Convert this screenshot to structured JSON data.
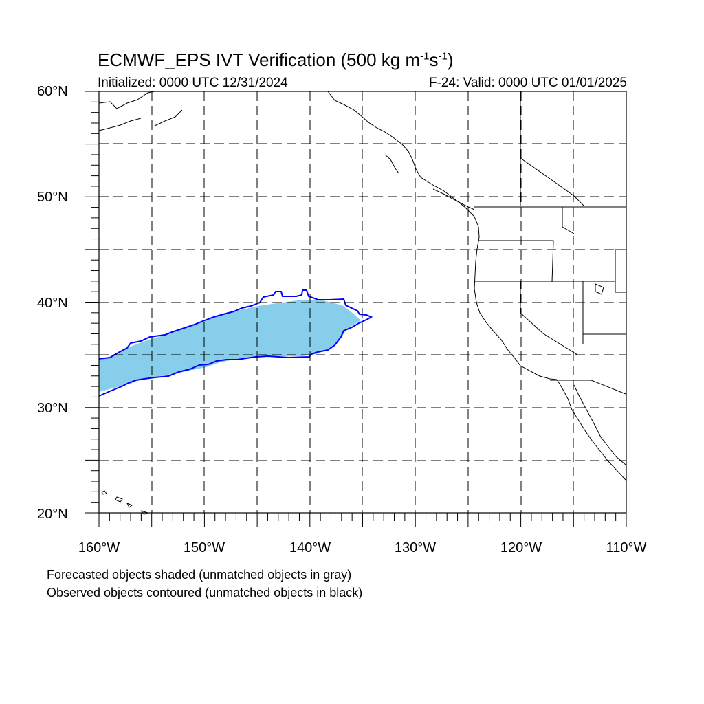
{
  "title": {
    "prefix": "ECMWF_EPS IVT Verification (500 kg m",
    "sup1": "-1",
    "mid": "s",
    "sup2": "-1",
    "suffix": ")"
  },
  "subtitle_left": "Initialized: 0000 UTC 12/31/2024",
  "subtitle_right": "F-24: Valid: 0000 UTC 01/01/2025",
  "lat_labels": [
    "60°N",
    "50°N",
    "40°N",
    "30°N",
    "20°N"
  ],
  "lon_labels": [
    "160°W",
    "150°W",
    "140°W",
    "130°W",
    "120°W",
    "110°W"
  ],
  "notes": [
    "Forecasted objects shaded (unmatched objects in gray)",
    "Observed objects contoured (unmatched objects in black)"
  ],
  "map": {
    "lon_range": [
      -160,
      -110
    ],
    "lat_range": [
      20,
      60
    ],
    "grid_interval_deg": 5,
    "forecast_fill_color": "#87ceeb",
    "observed_contour_color": "#0000ff",
    "coastline_color": "#000000",
    "gridline_style": "dashed"
  }
}
